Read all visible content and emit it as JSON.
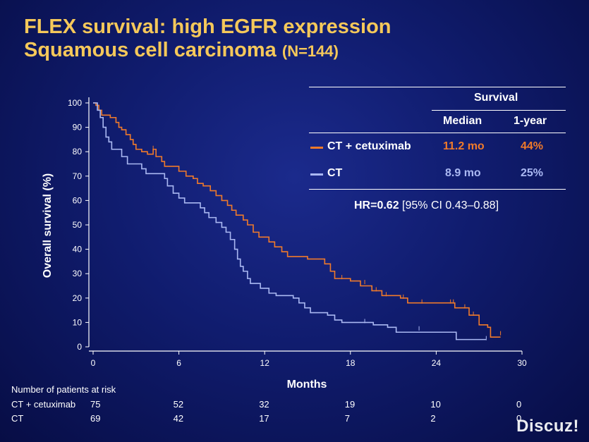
{
  "title": {
    "line1": "FLEX survival: high EGFR expression",
    "line2": "Squamous cell carcinoma",
    "n": "(N=144)"
  },
  "chart_data": {
    "type": "line",
    "subtype": "kaplan-meier",
    "xlabel": "Months",
    "ylabel": "Overall survival (%)",
    "xlim": [
      0,
      30
    ],
    "ylim": [
      0,
      100
    ],
    "xticks": [
      0,
      6,
      12,
      18,
      24,
      30
    ],
    "yticks": [
      0,
      10,
      20,
      30,
      40,
      50,
      60,
      70,
      80,
      90,
      100
    ],
    "series": [
      {
        "name": "CT + cetuximab",
        "color": "#f07a2a",
        "steps": [
          [
            0,
            100
          ],
          [
            0.2,
            99
          ],
          [
            0.4,
            97
          ],
          [
            0.6,
            95
          ],
          [
            1.2,
            94
          ],
          [
            1.6,
            92
          ],
          [
            1.8,
            90
          ],
          [
            2.0,
            89
          ],
          [
            2.3,
            87
          ],
          [
            2.6,
            85
          ],
          [
            2.8,
            83
          ],
          [
            3.0,
            81
          ],
          [
            3.4,
            80
          ],
          [
            3.8,
            79
          ],
          [
            4.2,
            81
          ],
          [
            4.4,
            78
          ],
          [
            4.8,
            76
          ],
          [
            5.0,
            74
          ],
          [
            6.0,
            72
          ],
          [
            6.5,
            70
          ],
          [
            7.0,
            69
          ],
          [
            7.3,
            67
          ],
          [
            7.7,
            66
          ],
          [
            8.2,
            64
          ],
          [
            8.6,
            62
          ],
          [
            9.0,
            60
          ],
          [
            9.4,
            58
          ],
          [
            9.7,
            56
          ],
          [
            10.0,
            54
          ],
          [
            10.5,
            52
          ],
          [
            10.8,
            50
          ],
          [
            11.2,
            47
          ],
          [
            11.6,
            45
          ],
          [
            12.3,
            43
          ],
          [
            12.7,
            41
          ],
          [
            13.2,
            39
          ],
          [
            13.6,
            37
          ],
          [
            15.0,
            36
          ],
          [
            16.2,
            34
          ],
          [
            16.6,
            31
          ],
          [
            16.9,
            28
          ],
          [
            18.0,
            27
          ],
          [
            18.7,
            25
          ],
          [
            19.5,
            23
          ],
          [
            20.2,
            21
          ],
          [
            21.5,
            20
          ],
          [
            22.0,
            18
          ],
          [
            25.0,
            18
          ],
          [
            25.3,
            16
          ],
          [
            26.3,
            13
          ],
          [
            27.0,
            9
          ],
          [
            27.6,
            8
          ],
          [
            27.8,
            4
          ],
          [
            28.5,
            4
          ]
        ],
        "censors": [
          [
            4.2,
            81
          ],
          [
            17.4,
            28
          ],
          [
            19.0,
            26
          ],
          [
            19.8,
            23
          ],
          [
            20.5,
            21
          ],
          [
            21.7,
            20
          ],
          [
            23.0,
            18
          ],
          [
            25.0,
            18
          ],
          [
            25.2,
            18
          ],
          [
            26.0,
            16
          ],
          [
            26.6,
            13
          ],
          [
            28.5,
            5
          ]
        ]
      },
      {
        "name": "CT",
        "color": "#aab8f2",
        "steps": [
          [
            0,
            100
          ],
          [
            0.3,
            97
          ],
          [
            0.5,
            94
          ],
          [
            0.7,
            90
          ],
          [
            0.9,
            86
          ],
          [
            1.1,
            84
          ],
          [
            1.3,
            81
          ],
          [
            2.0,
            78
          ],
          [
            2.4,
            75
          ],
          [
            3.4,
            73
          ],
          [
            3.7,
            71
          ],
          [
            5.0,
            69
          ],
          [
            5.2,
            66
          ],
          [
            5.6,
            63
          ],
          [
            6.0,
            61
          ],
          [
            6.4,
            59
          ],
          [
            7.5,
            57
          ],
          [
            7.8,
            55
          ],
          [
            8.1,
            53
          ],
          [
            8.6,
            51
          ],
          [
            9.0,
            49
          ],
          [
            9.3,
            47
          ],
          [
            9.6,
            44
          ],
          [
            9.9,
            40
          ],
          [
            10.1,
            36
          ],
          [
            10.3,
            33
          ],
          [
            10.5,
            31
          ],
          [
            10.8,
            28
          ],
          [
            11.0,
            26
          ],
          [
            11.7,
            24
          ],
          [
            12.3,
            22
          ],
          [
            12.8,
            21
          ],
          [
            14.0,
            20
          ],
          [
            14.4,
            18
          ],
          [
            14.8,
            16
          ],
          [
            15.2,
            14
          ],
          [
            16.4,
            13
          ],
          [
            16.9,
            11
          ],
          [
            17.4,
            10
          ],
          [
            19.6,
            9
          ],
          [
            20.6,
            8
          ],
          [
            21.2,
            6
          ],
          [
            25.0,
            6
          ],
          [
            25.4,
            3
          ],
          [
            27.5,
            3
          ]
        ],
        "censors": [
          [
            19.0,
            10
          ],
          [
            22.8,
            7
          ],
          [
            27.5,
            3
          ]
        ]
      }
    ]
  },
  "table": {
    "header": "Survival",
    "col_median": "Median",
    "col_1year": "1-year",
    "rows": [
      {
        "label": "CT + cetuximab",
        "median": "11.2 mo",
        "oneyear": "44%",
        "color": "#f07a2a"
      },
      {
        "label": "CT",
        "median": "8.9 mo",
        "oneyear": "25%",
        "color": "#aab8f2"
      }
    ],
    "hr_bold": "HR=0.62",
    "hr_ci": " [95% CI 0.43–0.88]"
  },
  "risk": {
    "title": "Number of patients at risk",
    "rows": [
      {
        "label": "CT + cetuximab",
        "values": [
          "75",
          "52",
          "32",
          "19",
          "10",
          "0"
        ]
      },
      {
        "label": "CT",
        "values": [
          "69",
          "42",
          "17",
          "7",
          "2",
          "0"
        ]
      }
    ]
  },
  "watermark": "Discuz!"
}
